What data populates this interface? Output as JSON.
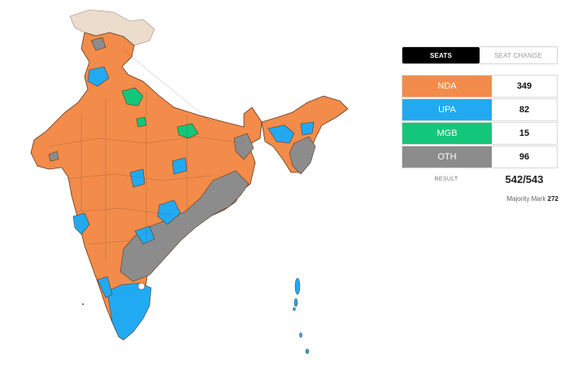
{
  "tabs": {
    "seats": "SEATS",
    "seat_change": "SEAT CHANGE"
  },
  "alliances": [
    {
      "name": "NDA",
      "seats": "349",
      "color": "#f38b4a"
    },
    {
      "name": "UPA",
      "seats": "82",
      "color": "#21aaf2"
    },
    {
      "name": "MGB",
      "seats": "15",
      "color": "#13c77a"
    },
    {
      "name": "OTH",
      "seats": "96",
      "color": "#8c8c8c"
    }
  ],
  "result": {
    "label": "RESULT",
    "value": "542/543"
  },
  "majority": {
    "label": "Majority Mark",
    "value": "272"
  },
  "map_colors": {
    "nda": "#f38b4a",
    "upa": "#21aaf2",
    "mgb": "#13c77a",
    "oth": "#8c8c8c",
    "disputed": "#ecdccb"
  }
}
